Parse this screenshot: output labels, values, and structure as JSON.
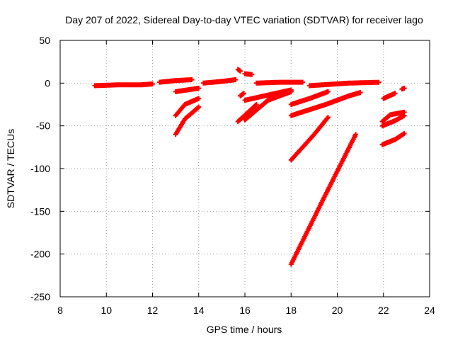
{
  "chart_data": {
    "type": "scatter",
    "title": "Day 207 of 2022, Sidereal Day-to-day VTEC variation (SDTVAR) for receiver lago",
    "xlabel": "GPS time / hours",
    "ylabel": "SDTVAR / TECUs",
    "xlim": [
      8,
      24
    ],
    "ylim": [
      -250,
      50
    ],
    "xticks": [
      "8",
      "10",
      "12",
      "14",
      "16",
      "18",
      "20",
      "22",
      "24"
    ],
    "yticks": [
      "50",
      "0",
      "-50",
      "-100",
      "-150",
      "-200",
      "-250"
    ],
    "grid": true,
    "marker": "plus",
    "color": "#ff0000",
    "arcs": [
      {
        "x": [
          9.5,
          10.5,
          11.5,
          12.0
        ],
        "y": [
          -3,
          -2,
          -2,
          -1
        ]
      },
      {
        "x": [
          12.3,
          13.0,
          13.7
        ],
        "y": [
          1,
          3,
          4
        ]
      },
      {
        "x": [
          13.0,
          13.5,
          14.0
        ],
        "y": [
          -10,
          -8,
          -6
        ]
      },
      {
        "x": [
          13.0,
          13.4,
          14.0
        ],
        "y": [
          -38,
          -25,
          -18
        ]
      },
      {
        "x": [
          13.0,
          13.4,
          14.0
        ],
        "y": [
          -60,
          -42,
          -28
        ]
      },
      {
        "x": [
          14.2,
          15.0,
          15.6
        ],
        "y": [
          0,
          2,
          4
        ]
      },
      {
        "x": [
          15.7,
          15.8
        ],
        "y": [
          16,
          14
        ]
      },
      {
        "x": [
          16.0,
          16.3
        ],
        "y": [
          11,
          10
        ]
      },
      {
        "x": [
          15.8,
          15.95
        ],
        "y": [
          -15,
          -12
        ]
      },
      {
        "x": [
          15.7,
          16.1,
          16.5
        ],
        "y": [
          -45,
          -35,
          -25
        ]
      },
      {
        "x": [
          16.0,
          17.0,
          18.0
        ],
        "y": [
          -43,
          -20,
          -10
        ]
      },
      {
        "x": [
          16.0,
          17.0,
          18.0
        ],
        "y": [
          -20,
          -14,
          -8
        ]
      },
      {
        "x": [
          16.5,
          17.5,
          18.5
        ],
        "y": [
          0,
          1,
          1
        ]
      },
      {
        "x": [
          18.0,
          18.8,
          19.6
        ],
        "y": [
          -25,
          -18,
          -10
        ]
      },
      {
        "x": [
          18.0,
          19.5,
          20.5,
          21.0
        ],
        "y": [
          -38,
          -25,
          -15,
          -11
        ]
      },
      {
        "x": [
          18.0,
          19.0,
          19.6
        ],
        "y": [
          -90,
          -60,
          -40
        ]
      },
      {
        "x": [
          18.0,
          19.5,
          20.8
        ],
        "y": [
          -212,
          -130,
          -60
        ]
      },
      {
        "x": [
          18.8,
          20.5,
          21.8
        ],
        "y": [
          -3,
          0,
          1
        ]
      },
      {
        "x": [
          22.0,
          22.5
        ],
        "y": [
          -18,
          -12
        ]
      },
      {
        "x": [
          22.8,
          22.9
        ],
        "y": [
          -7,
          -6
        ]
      },
      {
        "x": [
          21.95,
          22.3,
          22.9
        ],
        "y": [
          -45,
          -37,
          -34
        ]
      },
      {
        "x": [
          21.95,
          22.5,
          22.9
        ],
        "y": [
          -50,
          -44,
          -38
        ]
      },
      {
        "x": [
          21.95,
          22.5,
          22.9
        ],
        "y": [
          -72,
          -66,
          -59
        ]
      }
    ]
  }
}
